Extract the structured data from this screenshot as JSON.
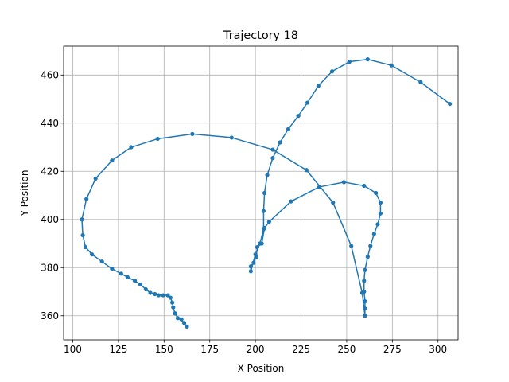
{
  "chart_data": {
    "type": "line",
    "title": "Trajectory 18",
    "xlabel": "X Position",
    "ylabel": "Y Position",
    "xlim": [
      95,
      311
    ],
    "ylim": [
      350,
      472
    ],
    "xticks": [
      100,
      125,
      150,
      175,
      200,
      225,
      250,
      275,
      300
    ],
    "yticks": [
      360,
      380,
      400,
      420,
      440,
      460
    ],
    "grid": true,
    "legend": "none",
    "series": [
      {
        "color": "#1f77b4",
        "marker": "circle",
        "points": [
          [
            162.5,
            355.5
          ],
          [
            161.0,
            357.0
          ],
          [
            159.5,
            358.5
          ],
          [
            157.5,
            359.0
          ],
          [
            156.0,
            361.0
          ],
          [
            155.0,
            363.5
          ],
          [
            154.5,
            365.5
          ],
          [
            153.5,
            367.5
          ],
          [
            152.0,
            368.5
          ],
          [
            149.5,
            368.5
          ],
          [
            147.0,
            368.5
          ],
          [
            145.0,
            369.0
          ],
          [
            142.5,
            369.5
          ],
          [
            140.0,
            371.0
          ],
          [
            137.0,
            373.0
          ],
          [
            134.0,
            374.5
          ],
          [
            130.0,
            376.0
          ],
          [
            126.5,
            377.5
          ],
          [
            121.5,
            379.5
          ],
          [
            116.0,
            382.5
          ],
          [
            110.5,
            385.5
          ],
          [
            107.0,
            388.5
          ],
          [
            105.5,
            393.5
          ],
          [
            105.0,
            400.0
          ],
          [
            107.5,
            408.5
          ],
          [
            112.5,
            417.0
          ],
          [
            121.5,
            424.5
          ],
          [
            132.0,
            430.0
          ],
          [
            146.5,
            433.5
          ],
          [
            165.5,
            435.5
          ],
          [
            187.0,
            434.0
          ],
          [
            209.5,
            429.0
          ],
          [
            228.0,
            420.5
          ],
          [
            242.5,
            407.0
          ],
          [
            252.5,
            389.0
          ],
          [
            258.5,
            369.5
          ],
          [
            260.0,
            360.0
          ],
          [
            260.0,
            363.0
          ],
          [
            260.0,
            366.0
          ],
          [
            259.5,
            370.0
          ],
          [
            259.5,
            374.5
          ],
          [
            260.0,
            379.0
          ],
          [
            261.5,
            384.5
          ],
          [
            263.0,
            389.0
          ],
          [
            265.0,
            394.0
          ],
          [
            267.0,
            398.0
          ],
          [
            268.5,
            402.5
          ],
          [
            268.5,
            407.0
          ],
          [
            266.0,
            411.0
          ],
          [
            259.5,
            414.0
          ],
          [
            248.5,
            415.5
          ],
          [
            235.0,
            413.5
          ],
          [
            219.5,
            407.5
          ],
          [
            207.5,
            399.0
          ],
          [
            205.0,
            396.5
          ],
          [
            203.5,
            390.0
          ],
          [
            201.0,
            388.5
          ],
          [
            200.5,
            384.5
          ],
          [
            199.0,
            382.0
          ],
          [
            197.5,
            380.5
          ],
          [
            197.5,
            378.5
          ],
          [
            200.0,
            385.5
          ],
          [
            202.5,
            390.0
          ],
          [
            204.5,
            396.0
          ],
          [
            204.5,
            403.5
          ],
          [
            205.0,
            411.0
          ],
          [
            206.5,
            418.5
          ],
          [
            209.5,
            425.5
          ],
          [
            213.5,
            432.0
          ],
          [
            218.0,
            437.5
          ],
          [
            223.5,
            443.0
          ],
          [
            228.5,
            448.5
          ],
          [
            234.5,
            455.5
          ],
          [
            242.0,
            461.5
          ],
          [
            251.5,
            465.5
          ],
          [
            261.5,
            466.5
          ],
          [
            274.5,
            464.0
          ],
          [
            290.5,
            457.0
          ],
          [
            306.5,
            448.0
          ]
        ]
      }
    ]
  }
}
